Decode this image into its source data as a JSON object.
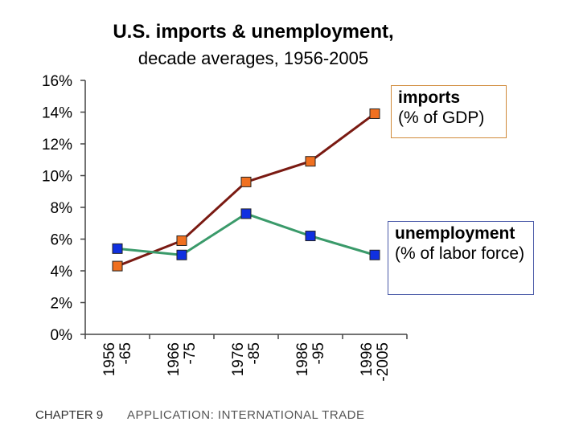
{
  "chart_data": {
    "type": "line",
    "title": "U.S. imports & unemployment,",
    "subtitle": "decade averages, 1956-2005",
    "categories": [
      {
        "line1": "1956",
        "line2": "-65"
      },
      {
        "line1": "1966",
        "line2": "-75"
      },
      {
        "line1": "1976",
        "line2": "-85"
      },
      {
        "line1": "1986",
        "line2": "-95"
      },
      {
        "line1": "1996",
        "line2": "-2005"
      }
    ],
    "ylim": [
      0,
      16
    ],
    "yticks": [
      "0%",
      "2%",
      "4%",
      "6%",
      "8%",
      "10%",
      "12%",
      "14%",
      "16%"
    ],
    "series": [
      {
        "name": "imports",
        "label_bold": "imports",
        "label_sub": "(% of GDP)",
        "values": [
          4.3,
          5.9,
          9.6,
          10.9,
          13.9
        ],
        "line_color": "#7a1a12",
        "marker_color": "#f07020"
      },
      {
        "name": "unemployment",
        "label_bold": "unemployment",
        "label_sub": "(% of labor force)",
        "values": [
          5.4,
          5.0,
          7.6,
          6.2,
          5.0
        ],
        "line_color": "#3a9a6a",
        "marker_color": "#1030e0"
      }
    ]
  },
  "footer": {
    "chapter": "CHAPTER 9",
    "text": "APPLICATION:  INTERNATIONAL TRADE"
  }
}
